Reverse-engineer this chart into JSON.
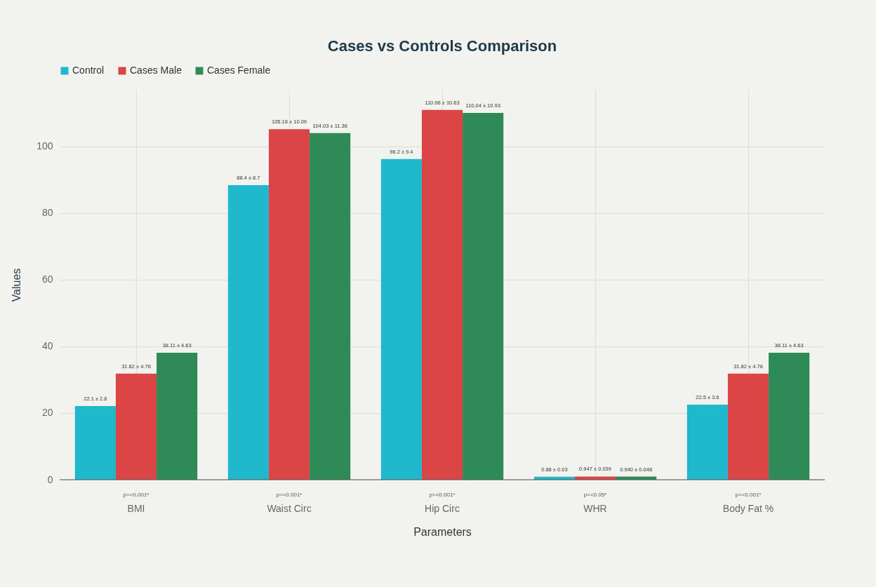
{
  "chart_data": {
    "type": "bar",
    "title": "Cases vs Controls Comparison",
    "xlabel": "Parameters",
    "ylabel": "Values",
    "categories": [
      "BMI",
      "Waist Circ",
      "Hip Circ",
      "WHR",
      "Body Fat %"
    ],
    "series": [
      {
        "name": "Control",
        "color": "#1fb8cd",
        "values": [
          22.1,
          88.4,
          96.2,
          0.88,
          22.5
        ],
        "value_labels": [
          "22.1 ± 2.8",
          "88.4 ± 8.7",
          "96.2 ± 9.4",
          "0.88 ± 0.03",
          "22.5 ± 3.6"
        ]
      },
      {
        "name": "Cases Male",
        "color": "#db4545",
        "values": [
          31.82,
          105.18,
          110.96,
          0.947,
          31.82
        ],
        "value_labels": [
          "31.82 ± 4.76",
          "105.18 ± 10.09",
          "110.96 ± 10.63",
          "0.947 ± 0.039",
          "31.82 ± 4.76"
        ]
      },
      {
        "name": "Cases Female",
        "color": "#2e8b57",
        "values": [
          38.11,
          104.03,
          110.04,
          0.94,
          38.11
        ],
        "value_labels": [
          "38.11 ± 4.63",
          "104.03 ± 11.36",
          "110.04 ± 10.93",
          "0.940 ± 0.048",
          "38.11 ± 4.63"
        ]
      }
    ],
    "ylim": [
      0,
      117
    ],
    "yticks": [
      0,
      20,
      40,
      60,
      80,
      100
    ],
    "grid": true,
    "legend": "top",
    "annotations": [
      "p=<0.001*",
      "p=<0.001*",
      "p=<0.001*",
      "p=<0.05*",
      "p=<0.001*"
    ]
  }
}
